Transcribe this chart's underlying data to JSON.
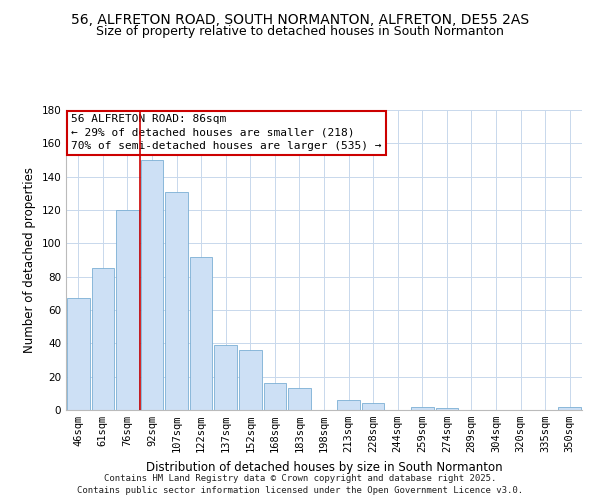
{
  "title": "56, ALFRETON ROAD, SOUTH NORMANTON, ALFRETON, DE55 2AS",
  "subtitle": "Size of property relative to detached houses in South Normanton",
  "xlabel": "Distribution of detached houses by size in South Normanton",
  "ylabel": "Number of detached properties",
  "bar_color": "#cde0f5",
  "bar_edge_color": "#7bafd4",
  "categories": [
    "46sqm",
    "61sqm",
    "76sqm",
    "92sqm",
    "107sqm",
    "122sqm",
    "137sqm",
    "152sqm",
    "168sqm",
    "183sqm",
    "198sqm",
    "213sqm",
    "228sqm",
    "244sqm",
    "259sqm",
    "274sqm",
    "289sqm",
    "304sqm",
    "320sqm",
    "335sqm",
    "350sqm"
  ],
  "values": [
    67,
    85,
    120,
    150,
    131,
    92,
    39,
    36,
    16,
    13,
    0,
    6,
    4,
    0,
    2,
    1,
    0,
    0,
    0,
    0,
    2
  ],
  "ylim": [
    0,
    180
  ],
  "yticks": [
    0,
    20,
    40,
    60,
    80,
    100,
    120,
    140,
    160,
    180
  ],
  "vline_x_index": 3,
  "annotation_line1": "56 ALFRETON ROAD: 86sqm",
  "annotation_line2": "← 29% of detached houses are smaller (218)",
  "annotation_line3": "70% of semi-detached houses are larger (535) →",
  "annotation_box_color": "#ffffff",
  "annotation_box_edge_color": "#cc0000",
  "footnote": "Contains HM Land Registry data © Crown copyright and database right 2025.\nContains public sector information licensed under the Open Government Licence v3.0.",
  "background_color": "#ffffff",
  "grid_color": "#c8d8ec",
  "title_fontsize": 10,
  "subtitle_fontsize": 9,
  "axis_label_fontsize": 8.5,
  "tick_fontsize": 7.5,
  "annotation_fontsize": 8,
  "footnote_fontsize": 6.5
}
